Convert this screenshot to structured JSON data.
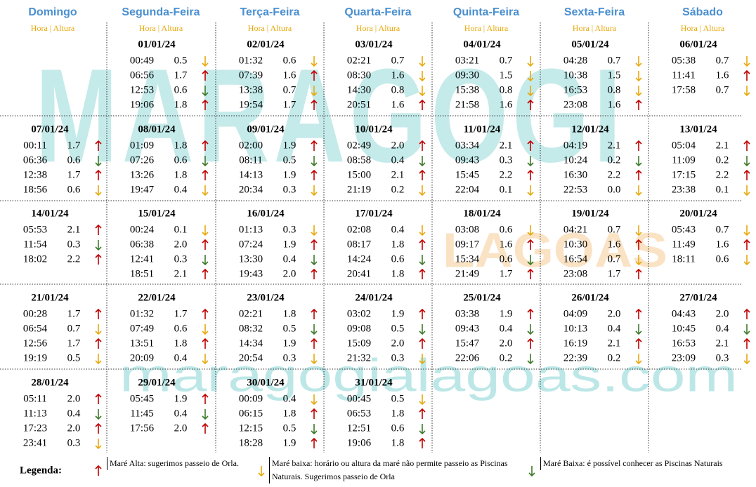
{
  "header": {
    "days": [
      "Domingo",
      "Segunda-Feira",
      "Terça-Feira",
      "Quarta-Feira",
      "Quinta-Feira",
      "Sexta-Feira",
      "Sábado"
    ],
    "subheader": "Hora | Altura"
  },
  "watermark": {
    "name": "MARAGOGI",
    "sub": "LAGOAS",
    "site": "maragogialagoas.com"
  },
  "weeks": [
    [
      null,
      {
        "date": "01/01/24",
        "tides": [
          [
            "00:49",
            "0.5",
            "#e8a90c"
          ],
          [
            "06:56",
            "1.7",
            "#c00000"
          ],
          [
            "12:53",
            "0.6",
            "#3d7a2a"
          ],
          [
            "19:06",
            "1.8",
            "#c00000"
          ]
        ]
      },
      {
        "date": "02/01/24",
        "tides": [
          [
            "01:32",
            "0.6",
            "#e8a90c"
          ],
          [
            "07:39",
            "1.6",
            "#c00000"
          ],
          [
            "13:38",
            "0.7",
            "#e8a90c"
          ],
          [
            "19:54",
            "1.7",
            "#c00000"
          ]
        ]
      },
      {
        "date": "03/01/24",
        "tides": [
          [
            "02:21",
            "0.7",
            "#e8a90c"
          ],
          [
            "08:30",
            "1.6",
            "#e8a90c"
          ],
          [
            "14:30",
            "0.8",
            "#e8a90c"
          ],
          [
            "20:51",
            "1.6",
            "#c00000"
          ]
        ]
      },
      {
        "date": "04/01/24",
        "tides": [
          [
            "03:21",
            "0.7",
            "#e8a90c"
          ],
          [
            "09:30",
            "1.5",
            "#e8a90c"
          ],
          [
            "15:38",
            "0.8",
            "#e8a90c"
          ],
          [
            "21:58",
            "1.6",
            "#c00000"
          ]
        ]
      },
      {
        "date": "05/01/24",
        "tides": [
          [
            "04:28",
            "0.7",
            "#e8a90c"
          ],
          [
            "10:38",
            "1.5",
            "#e8a90c"
          ],
          [
            "16:53",
            "0.8",
            "#e8a90c"
          ],
          [
            "23:08",
            "1.6",
            "#c00000"
          ]
        ]
      },
      {
        "date": "06/01/24",
        "tides": [
          [
            "05:38",
            "0.7",
            "#e8a90c"
          ],
          [
            "11:41",
            "1.6",
            "#c00000"
          ],
          [
            "17:58",
            "0.7",
            "#e8a90c"
          ]
        ]
      }
    ],
    [
      {
        "date": "07/01/24",
        "tides": [
          [
            "00:11",
            "1.7",
            "#c00000"
          ],
          [
            "06:36",
            "0.6",
            "#3d7a2a"
          ],
          [
            "12:38",
            "1.7",
            "#c00000"
          ],
          [
            "18:56",
            "0.6",
            "#e8a90c"
          ]
        ]
      },
      {
        "date": "08/01/24",
        "tides": [
          [
            "01:09",
            "1.8",
            "#c00000"
          ],
          [
            "07:26",
            "0.6",
            "#3d7a2a"
          ],
          [
            "13:26",
            "1.8",
            "#c00000"
          ],
          [
            "19:47",
            "0.4",
            "#e8a90c"
          ]
        ]
      },
      {
        "date": "09/01/24",
        "tides": [
          [
            "02:00",
            "1.9",
            "#c00000"
          ],
          [
            "08:11",
            "0.5",
            "#3d7a2a"
          ],
          [
            "14:13",
            "1.9",
            "#c00000"
          ],
          [
            "20:34",
            "0.3",
            "#e8a90c"
          ]
        ]
      },
      {
        "date": "10/01/24",
        "tides": [
          [
            "02:49",
            "2.0",
            "#c00000"
          ],
          [
            "08:58",
            "0.4",
            "#3d7a2a"
          ],
          [
            "15:00",
            "2.1",
            "#c00000"
          ],
          [
            "21:19",
            "0.2",
            "#e8a90c"
          ]
        ]
      },
      {
        "date": "11/01/24",
        "tides": [
          [
            "03:34",
            "2.1",
            "#c00000"
          ],
          [
            "09:43",
            "0.3",
            "#3d7a2a"
          ],
          [
            "15:45",
            "2.2",
            "#c00000"
          ],
          [
            "22:04",
            "0.1",
            "#e8a90c"
          ]
        ]
      },
      {
        "date": "12/01/24",
        "tides": [
          [
            "04:19",
            "2.1",
            "#c00000"
          ],
          [
            "10:24",
            "0.2",
            "#3d7a2a"
          ],
          [
            "16:30",
            "2.2",
            "#c00000"
          ],
          [
            "22:53",
            "0.0",
            "#e8a90c"
          ]
        ]
      },
      {
        "date": "13/01/24",
        "tides": [
          [
            "05:04",
            "2.1",
            "#c00000"
          ],
          [
            "11:09",
            "0.2",
            "#3d7a2a"
          ],
          [
            "17:15",
            "2.2",
            "#c00000"
          ],
          [
            "23:38",
            "0.1",
            "#e8a90c"
          ]
        ]
      }
    ],
    [
      {
        "date": "14/01/24",
        "tides": [
          [
            "05:53",
            "2.1",
            "#c00000"
          ],
          [
            "11:54",
            "0.3",
            "#3d7a2a"
          ],
          [
            "18:02",
            "2.2",
            "#c00000"
          ]
        ]
      },
      {
        "date": "15/01/24",
        "tides": [
          [
            "00:24",
            "0.1",
            "#e8a90c"
          ],
          [
            "06:38",
            "2.0",
            "#c00000"
          ],
          [
            "12:41",
            "0.3",
            "#3d7a2a"
          ],
          [
            "18:51",
            "2.1",
            "#c00000"
          ]
        ]
      },
      {
        "date": "16/01/24",
        "tides": [
          [
            "01:13",
            "0.3",
            "#e8a90c"
          ],
          [
            "07:24",
            "1.9",
            "#c00000"
          ],
          [
            "13:30",
            "0.4",
            "#3d7a2a"
          ],
          [
            "19:43",
            "2.0",
            "#c00000"
          ]
        ]
      },
      {
        "date": "17/01/24",
        "tides": [
          [
            "02:08",
            "0.4",
            "#e8a90c"
          ],
          [
            "08:17",
            "1.8",
            "#c00000"
          ],
          [
            "14:24",
            "0.6",
            "#3d7a2a"
          ],
          [
            "20:41",
            "1.8",
            "#c00000"
          ]
        ]
      },
      {
        "date": "18/01/24",
        "tides": [
          [
            "03:08",
            "0.6",
            "#e8a90c"
          ],
          [
            "09:17",
            "1.6",
            "#c00000"
          ],
          [
            "15:34",
            "0.6",
            "#3d7a2a"
          ],
          [
            "21:49",
            "1.7",
            "#c00000"
          ]
        ]
      },
      {
        "date": "19/01/24",
        "tides": [
          [
            "04:21",
            "0.7",
            "#e8a90c"
          ],
          [
            "10:30",
            "1.6",
            "#c00000"
          ],
          [
            "16:54",
            "0.7",
            "#e8a90c"
          ],
          [
            "23:08",
            "1.7",
            "#c00000"
          ]
        ]
      },
      {
        "date": "20/01/24",
        "tides": [
          [
            "05:43",
            "0.7",
            "#e8a90c"
          ],
          [
            "11:49",
            "1.6",
            "#c00000"
          ],
          [
            "18:11",
            "0.6",
            "#e8a90c"
          ]
        ]
      }
    ],
    [
      {
        "date": "21/01/24",
        "tides": [
          [
            "00:28",
            "1.7",
            "#c00000"
          ],
          [
            "06:54",
            "0.7",
            "#e8a90c"
          ],
          [
            "12:56",
            "1.7",
            "#c00000"
          ],
          [
            "19:19",
            "0.5",
            "#e8a90c"
          ]
        ]
      },
      {
        "date": "22/01/24",
        "tides": [
          [
            "01:32",
            "1.7",
            "#c00000"
          ],
          [
            "07:49",
            "0.6",
            "#e8a90c"
          ],
          [
            "13:51",
            "1.8",
            "#c00000"
          ],
          [
            "20:09",
            "0.4",
            "#e8a90c"
          ]
        ]
      },
      {
        "date": "23/01/24",
        "tides": [
          [
            "02:21",
            "1.8",
            "#c00000"
          ],
          [
            "08:32",
            "0.5",
            "#3d7a2a"
          ],
          [
            "14:34",
            "1.9",
            "#c00000"
          ],
          [
            "20:54",
            "0.3",
            "#e8a90c"
          ]
        ]
      },
      {
        "date": "24/01/24",
        "tides": [
          [
            "03:02",
            "1.9",
            "#c00000"
          ],
          [
            "09:08",
            "0.5",
            "#3d7a2a"
          ],
          [
            "15:09",
            "2.0",
            "#c00000"
          ],
          [
            "21:32",
            "0.3",
            "#e8a90c"
          ]
        ]
      },
      {
        "date": "25/01/24",
        "tides": [
          [
            "03:38",
            "1.9",
            "#c00000"
          ],
          [
            "09:43",
            "0.4",
            "#3d7a2a"
          ],
          [
            "15:47",
            "2.0",
            "#c00000"
          ],
          [
            "22:06",
            "0.2",
            "#3d7a2a"
          ]
        ]
      },
      {
        "date": "26/01/24",
        "tides": [
          [
            "04:09",
            "2.0",
            "#c00000"
          ],
          [
            "10:13",
            "0.4",
            "#3d7a2a"
          ],
          [
            "16:19",
            "2.1",
            "#c00000"
          ],
          [
            "22:39",
            "0.2",
            "#e8a90c"
          ]
        ]
      },
      {
        "date": "27/01/24",
        "tides": [
          [
            "04:43",
            "2.0",
            "#c00000"
          ],
          [
            "10:45",
            "0.4",
            "#3d7a2a"
          ],
          [
            "16:53",
            "2.1",
            "#c00000"
          ],
          [
            "23:09",
            "0.3",
            "#e8a90c"
          ]
        ]
      }
    ],
    [
      {
        "date": "28/01/24",
        "tides": [
          [
            "05:11",
            "2.0",
            "#c00000"
          ],
          [
            "11:13",
            "0.4",
            "#3d7a2a"
          ],
          [
            "17:23",
            "2.0",
            "#c00000"
          ],
          [
            "23:41",
            "0.3",
            "#e8a90c"
          ]
        ]
      },
      {
        "date": "29/01/24",
        "tides": [
          [
            "05:45",
            "1.9",
            "#c00000"
          ],
          [
            "11:45",
            "0.4",
            "#3d7a2a"
          ],
          [
            "17:56",
            "2.0",
            "#c00000"
          ]
        ]
      },
      {
        "date": "30/01/24",
        "tides": [
          [
            "00:09",
            "0.4",
            "#e8a90c"
          ],
          [
            "06:15",
            "1.8",
            "#c00000"
          ],
          [
            "12:15",
            "0.5",
            "#3d7a2a"
          ],
          [
            "18:28",
            "1.9",
            "#c00000"
          ]
        ]
      },
      {
        "date": "31/01/24",
        "tides": [
          [
            "00:45",
            "0.5",
            "#e8a90c"
          ],
          [
            "06:53",
            "1.8",
            "#c00000"
          ],
          [
            "12:51",
            "0.6",
            "#3d7a2a"
          ],
          [
            "19:06",
            "1.8",
            "#c00000"
          ]
        ]
      },
      null,
      null,
      null
    ]
  ],
  "legend": {
    "title": "Legenda:",
    "items": [
      {
        "color": "#c00000",
        "up": true,
        "text": "Maré Alta: sugerimos passeio de Orla."
      },
      {
        "color": "#e8a90c",
        "up": false,
        "text": "Maré baixa: horário ou altura da maré não permite passeio as Piscinas Naturais. Sugerimos passeio de Orla"
      },
      {
        "color": "#3d7a2a",
        "up": false,
        "text": "Maré Baixa: é possível conhecer as Piscinas Naturais"
      }
    ]
  }
}
